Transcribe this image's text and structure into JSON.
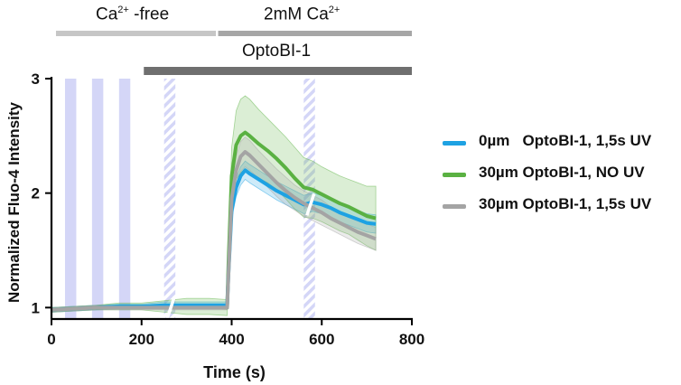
{
  "conditions": {
    "ca_free": {
      "main": "Ca",
      "sup": "2+",
      "rest": " -free"
    },
    "ca_2mm": {
      "main": "2mM Ca",
      "sup": "2+"
    },
    "opto": "OptoBI-1"
  },
  "colors": {
    "blue": "#1ea2e3",
    "green": "#5ab142",
    "gray": "#a4a4a4",
    "uv_band": "#d4d6f7",
    "bar_light": "#c6c6c6",
    "bar_mid": "#a6a6a6",
    "bar_dark": "#6f6f6f"
  },
  "chart_data": {
    "type": "line",
    "xlabel": "Time (s)",
    "ylabel": "Normalized Fluo-4 Intensity",
    "xlim": [
      0,
      800
    ],
    "ylim": [
      0.9,
      3
    ],
    "xticks": [
      0,
      200,
      400,
      600,
      800
    ],
    "yticks": [
      1,
      2,
      3
    ],
    "condition_bars": [
      {
        "label": "Ca2+ -free",
        "start": 10,
        "end": 365
      },
      {
        "label": "2mM Ca2+",
        "start": 370,
        "end": 800
      },
      {
        "label": "OptoBI-1",
        "start": 205,
        "end": 800
      }
    ],
    "uv_stimuli": [
      {
        "start": 30,
        "end": 55,
        "style": "solid"
      },
      {
        "start": 90,
        "end": 115,
        "style": "solid"
      },
      {
        "start": 150,
        "end": 175,
        "style": "solid"
      },
      {
        "start": 250,
        "end": 275,
        "style": "hatched"
      },
      {
        "start": 560,
        "end": 585,
        "style": "hatched"
      }
    ],
    "series": [
      {
        "name": "0µm   OptoBI-1, 1,5s UV",
        "color": "#1ea2e3",
        "x": [
          0,
          50,
          100,
          150,
          200,
          250,
          300,
          350,
          390,
          393,
          400,
          410,
          420,
          430,
          440,
          460,
          480,
          500,
          520,
          540,
          560,
          580,
          600,
          620,
          640,
          660,
          680,
          700,
          720
        ],
        "y": [
          0.98,
          0.99,
          1.0,
          1.01,
          1.01,
          1.02,
          1.02,
          1.02,
          1.02,
          1.3,
          1.85,
          2.05,
          2.15,
          2.2,
          2.17,
          2.12,
          2.07,
          2.02,
          1.98,
          1.94,
          1.9,
          1.92,
          1.9,
          1.87,
          1.83,
          1.8,
          1.77,
          1.74,
          1.73
        ],
        "err": [
          0.02,
          0.02,
          0.02,
          0.02,
          0.02,
          0.03,
          0.03,
          0.03,
          0.03,
          0.05,
          0.08,
          0.08,
          0.08,
          0.08,
          0.08,
          0.08,
          0.08,
          0.08,
          0.08,
          0.08,
          0.08,
          0.08,
          0.08,
          0.08,
          0.08,
          0.08,
          0.08,
          0.08,
          0.08
        ]
      },
      {
        "name": "30µm OptoBI-1, NO UV",
        "color": "#5ab142",
        "x": [
          0,
          50,
          100,
          150,
          200,
          250,
          300,
          350,
          390,
          393,
          400,
          410,
          420,
          430,
          440,
          460,
          480,
          500,
          520,
          540,
          560,
          580,
          600,
          620,
          640,
          660,
          680,
          700,
          720
        ],
        "y": [
          0.98,
          0.99,
          1.0,
          1.01,
          1.01,
          1.01,
          1.01,
          1.01,
          1.0,
          1.4,
          2.15,
          2.42,
          2.5,
          2.53,
          2.5,
          2.43,
          2.37,
          2.3,
          2.22,
          2.13,
          2.05,
          2.03,
          1.99,
          1.95,
          1.91,
          1.88,
          1.84,
          1.8,
          1.78
        ],
        "err": [
          0.02,
          0.02,
          0.02,
          0.03,
          0.03,
          0.05,
          0.07,
          0.07,
          0.07,
          0.12,
          0.25,
          0.3,
          0.32,
          0.32,
          0.32,
          0.3,
          0.28,
          0.27,
          0.27,
          0.27,
          0.26,
          0.25,
          0.24,
          0.24,
          0.24,
          0.24,
          0.25,
          0.26,
          0.28
        ]
      },
      {
        "name": "30µm OptoBI-1, 1,5s UV",
        "color": "#a4a4a4",
        "x": [
          0,
          50,
          100,
          150,
          200,
          250,
          300,
          350,
          390,
          393,
          400,
          410,
          420,
          430,
          440,
          460,
          480,
          500,
          520,
          540,
          560,
          580,
          600,
          620,
          640,
          660,
          680,
          700,
          720
        ],
        "y": [
          0.98,
          0.99,
          1.0,
          1.0,
          1.0,
          1.0,
          1.0,
          1.0,
          1.0,
          1.3,
          1.95,
          2.2,
          2.32,
          2.36,
          2.33,
          2.25,
          2.17,
          2.09,
          2.02,
          1.96,
          1.91,
          1.87,
          1.83,
          1.78,
          1.74,
          1.7,
          1.66,
          1.63,
          1.6
        ],
        "err": [
          0.02,
          0.02,
          0.02,
          0.02,
          0.02,
          0.02,
          0.02,
          0.02,
          0.02,
          0.05,
          0.1,
          0.12,
          0.13,
          0.13,
          0.13,
          0.12,
          0.12,
          0.12,
          0.12,
          0.11,
          0.11,
          0.11,
          0.11,
          0.1,
          0.1,
          0.1,
          0.1,
          0.1,
          0.1
        ]
      }
    ],
    "legend_position": "right"
  }
}
